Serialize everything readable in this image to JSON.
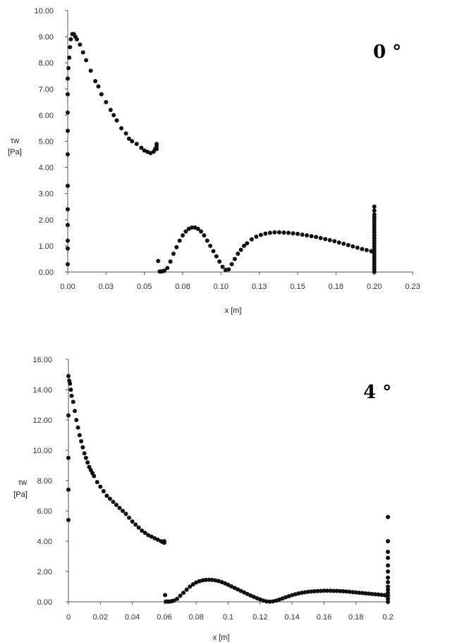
{
  "chart_data": [
    {
      "type": "scatter",
      "angle_label": "0 °",
      "ylabel": [
        "τw",
        "[Pa]"
      ],
      "xlabel": "x [m]",
      "xlim": [
        0,
        0.225
      ],
      "ylim": [
        0,
        10
      ],
      "xticks": [
        "0.00",
        "0.03",
        "0.05",
        "0.08",
        "0.10",
        "0.13",
        "0.15",
        "0.18",
        "0.20",
        "0.23"
      ],
      "yticks": [
        "0.00",
        "1.00",
        "2.00",
        "3.00",
        "4.00",
        "5.00",
        "6.00",
        "7.00",
        "8.00",
        "9.00",
        "10.00"
      ],
      "color": "#111111",
      "series": [
        {
          "x": [
            0,
            0,
            0,
            0,
            0,
            0,
            0,
            0,
            0,
            0,
            0,
            0.0005,
            0.001,
            0.0015,
            0.002,
            0.003,
            0.004,
            0.005,
            0.006,
            0.008,
            0.01,
            0.012,
            0.015,
            0.018,
            0.02,
            0.022,
            0.025,
            0.028,
            0.03,
            0.032,
            0.035,
            0.038,
            0.04,
            0.042,
            0.045,
            0.048,
            0.05,
            0.052,
            0.054,
            0.056,
            0.057,
            0.058,
            0.058,
            0.058
          ],
          "y": [
            0.3,
            0.9,
            1.2,
            1.8,
            2.4,
            3.3,
            4.5,
            5.4,
            6.1,
            6.8,
            7.4,
            7.8,
            8.2,
            8.6,
            8.9,
            9.1,
            9.1,
            9.0,
            8.9,
            8.7,
            8.4,
            8.1,
            7.7,
            7.3,
            7.1,
            6.8,
            6.5,
            6.2,
            6.0,
            5.8,
            5.5,
            5.3,
            5.1,
            5.0,
            4.9,
            4.75,
            4.65,
            4.6,
            4.55,
            4.6,
            4.7,
            4.9,
            4.8,
            4.7
          ]
        },
        {
          "x": [
            0.059,
            0.06,
            0.061,
            0.062,
            0.063,
            0.065,
            0.067,
            0.069,
            0.071,
            0.073,
            0.075,
            0.077,
            0.079,
            0.081,
            0.083,
            0.085,
            0.087,
            0.089,
            0.091,
            0.093,
            0.095,
            0.097,
            0.099,
            0.101,
            0.103,
            0.105,
            0.107,
            0.109,
            0.111,
            0.113,
            0.115,
            0.117,
            0.12,
            0.123,
            0.126,
            0.129,
            0.132,
            0.135,
            0.138,
            0.141,
            0.144,
            0.147,
            0.15,
            0.153,
            0.156,
            0.159,
            0.162,
            0.165,
            0.168,
            0.171,
            0.174,
            0.177,
            0.18,
            0.183,
            0.186,
            0.189,
            0.192,
            0.195,
            0.198,
            0.199
          ],
          "y": [
            0.42,
            0.02,
            0.02,
            0.03,
            0.05,
            0.15,
            0.4,
            0.7,
            0.95,
            1.2,
            1.4,
            1.55,
            1.65,
            1.7,
            1.7,
            1.65,
            1.55,
            1.4,
            1.2,
            1.0,
            0.8,
            0.6,
            0.4,
            0.2,
            0.08,
            0.1,
            0.3,
            0.5,
            0.7,
            0.85,
            1.0,
            1.1,
            1.25,
            1.35,
            1.42,
            1.47,
            1.5,
            1.52,
            1.52,
            1.51,
            1.5,
            1.48,
            1.46,
            1.43,
            1.4,
            1.37,
            1.34,
            1.3,
            1.26,
            1.22,
            1.18,
            1.13,
            1.08,
            1.03,
            0.98,
            0.93,
            0.88,
            0.84,
            0.8,
            0.78
          ]
        },
        {
          "x": [
            0.2,
            0.2,
            0.2,
            0.2,
            0.2,
            0.2,
            0.2,
            0.2,
            0.2,
            0.2,
            0.2,
            0.2,
            0.2,
            0.2,
            0.2,
            0.2,
            0.2,
            0.2,
            0.2,
            0.2,
            0.2,
            0.2,
            0.2,
            0.2,
            0.2
          ],
          "y": [
            0.0,
            0.1,
            0.2,
            0.3,
            0.4,
            0.5,
            0.6,
            0.7,
            0.8,
            0.9,
            1.0,
            1.1,
            1.2,
            1.3,
            1.4,
            1.5,
            1.6,
            1.7,
            1.8,
            1.9,
            2.0,
            2.1,
            2.2,
            2.35,
            2.5
          ]
        }
      ]
    },
    {
      "type": "scatter",
      "angle_label": "4 °",
      "ylabel": [
        "τw",
        "[Pa]"
      ],
      "xlabel": "x [m]",
      "xlim": [
        0,
        0.2
      ],
      "ylim": [
        0,
        16
      ],
      "xticks": [
        "0",
        "0.02",
        "0.04",
        "0.06",
        "0.08",
        "0.1",
        "0.12",
        "0.14",
        "0.16",
        "0.18",
        "0.2"
      ],
      "yticks": [
        "0.00",
        "2.00",
        "4.00",
        "6.00",
        "8.00",
        "10.00",
        "12.00",
        "14.00",
        "16.00"
      ],
      "color": "#111111",
      "series": [
        {
          "x": [
            0,
            0,
            0,
            0,
            0,
            0.0005,
            0.001,
            0.0015,
            0.002,
            0.003,
            0.004,
            0.005,
            0.006,
            0.007,
            0.008,
            0.009,
            0.01,
            0.011,
            0.012,
            0.013,
            0.014,
            0.015,
            0.016,
            0.018,
            0.02,
            0.022,
            0.024,
            0.026,
            0.028,
            0.03,
            0.032,
            0.034,
            0.036,
            0.038,
            0.04,
            0.042,
            0.044,
            0.046,
            0.048,
            0.05,
            0.052,
            0.054,
            0.056,
            0.058,
            0.059,
            0.06,
            0.06
          ],
          "y": [
            5.4,
            7.4,
            9.5,
            12.3,
            14.9,
            14.6,
            14.4,
            14.0,
            13.6,
            13.2,
            12.6,
            12.0,
            11.5,
            11.0,
            10.6,
            10.2,
            9.8,
            9.5,
            9.2,
            8.9,
            8.7,
            8.5,
            8.3,
            7.9,
            7.6,
            7.3,
            7.0,
            6.8,
            6.6,
            6.4,
            6.2,
            6.0,
            5.8,
            5.55,
            5.3,
            5.1,
            4.9,
            4.7,
            4.55,
            4.4,
            4.3,
            4.2,
            4.1,
            4.0,
            3.95,
            4.0,
            3.9
          ]
        },
        {
          "x": [
            0.0605,
            0.061,
            0.062,
            0.063,
            0.064,
            0.065,
            0.066,
            0.068,
            0.07,
            0.072,
            0.074,
            0.076,
            0.078,
            0.08,
            0.082,
            0.084,
            0.086,
            0.088,
            0.09,
            0.092,
            0.094,
            0.096,
            0.098,
            0.1,
            0.102,
            0.104,
            0.106,
            0.108,
            0.11,
            0.112,
            0.114,
            0.116,
            0.118,
            0.12,
            0.122,
            0.124,
            0.126,
            0.128,
            0.13,
            0.132,
            0.134,
            0.136,
            0.138,
            0.14,
            0.142,
            0.144,
            0.146,
            0.148,
            0.15,
            0.152,
            0.154,
            0.156,
            0.158,
            0.16,
            0.162,
            0.164,
            0.166,
            0.168,
            0.17,
            0.172,
            0.174,
            0.176,
            0.178,
            0.18,
            0.182,
            0.184,
            0.186,
            0.188,
            0.19,
            0.192,
            0.194,
            0.196,
            0.198,
            0.199
          ],
          "y": [
            0.45,
            0.02,
            0.02,
            0.02,
            0.03,
            0.05,
            0.08,
            0.2,
            0.4,
            0.6,
            0.8,
            1.0,
            1.15,
            1.28,
            1.36,
            1.42,
            1.45,
            1.46,
            1.45,
            1.42,
            1.37,
            1.3,
            1.22,
            1.12,
            1.02,
            0.92,
            0.82,
            0.72,
            0.62,
            0.52,
            0.42,
            0.33,
            0.24,
            0.16,
            0.08,
            0.03,
            0.01,
            0.03,
            0.08,
            0.15,
            0.22,
            0.3,
            0.37,
            0.44,
            0.5,
            0.55,
            0.6,
            0.63,
            0.66,
            0.68,
            0.7,
            0.71,
            0.72,
            0.73,
            0.73,
            0.73,
            0.72,
            0.72,
            0.71,
            0.7,
            0.68,
            0.66,
            0.64,
            0.62,
            0.6,
            0.58,
            0.56,
            0.54,
            0.52,
            0.5,
            0.48,
            0.46,
            0.44,
            0.42
          ]
        },
        {
          "x": [
            0.2,
            0.2,
            0.2,
            0.2,
            0.2,
            0.2,
            0.2,
            0.2,
            0.2,
            0.2,
            0.2,
            0.2,
            0.2,
            0.2
          ],
          "y": [
            0.0,
            0.2,
            0.4,
            0.6,
            0.8,
            1.0,
            1.3,
            1.6,
            2.0,
            2.4,
            2.9,
            3.3,
            4.0,
            5.6
          ]
        }
      ]
    }
  ]
}
